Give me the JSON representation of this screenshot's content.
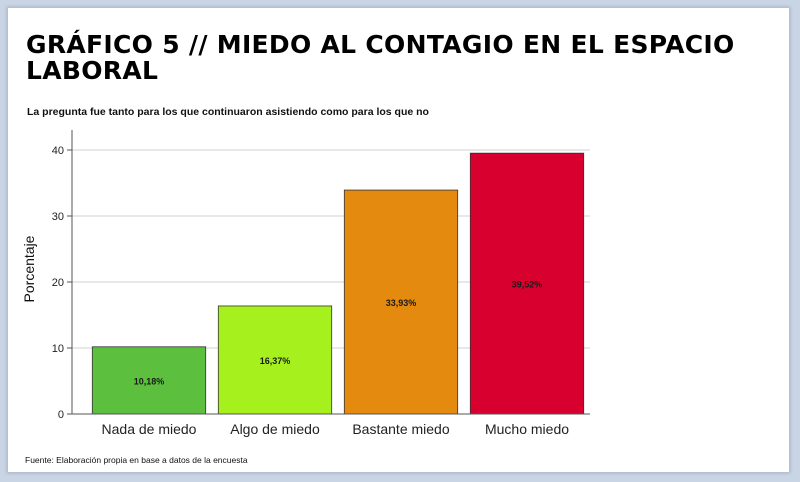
{
  "title": "GRÁFICO 5 // MIEDO AL CONTAGIO EN EL ESPACIO LABORAL",
  "subtitle": "La pregunta fue tanto para los que continuaron asistiendo como para los que no",
  "source": "Fuente: Elaboración propia en base a datos de la encuesta",
  "chart_data": {
    "type": "bar",
    "title": "",
    "xlabel": "",
    "ylabel": "Porcentaje",
    "ylim": [
      0,
      40
    ],
    "yticks": [
      0,
      10,
      20,
      30,
      40
    ],
    "grid": true,
    "categories": [
      "Nada de miedo",
      "Algo de miedo",
      "Bastante miedo",
      "Mucho miedo"
    ],
    "values": [
      10.18,
      16.37,
      33.93,
      39.52
    ],
    "data_labels": [
      "10,18%",
      "16,37%",
      "33,93%",
      "39,52%"
    ],
    "colors": [
      "#5cbf3d",
      "#a6f01e",
      "#e38a0f",
      "#d8002f"
    ]
  }
}
